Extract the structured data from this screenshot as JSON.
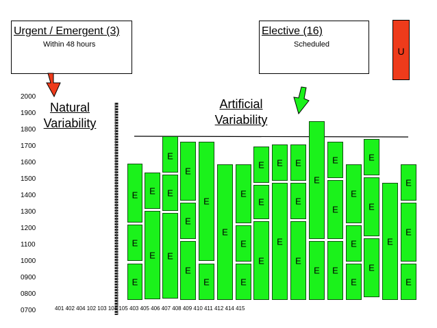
{
  "urgent_box": {
    "title": "Urgent / Emergent (3)",
    "subtitle": "Within 48 hours"
  },
  "elective_box": {
    "title": "Elective (16)",
    "subtitle": "Scheduled"
  },
  "u_label": "U",
  "headings": {
    "natural": [
      "Natural",
      "Variability"
    ],
    "artificial": [
      "Artificial",
      "Variability"
    ]
  },
  "y_axis_labels": [
    "2000",
    "1900",
    "1800",
    "1700",
    "1600",
    "1500",
    "1400",
    "1300",
    "1200",
    "1100",
    "1000",
    "0900",
    "0800",
    "0700"
  ],
  "x_axis_labels": "401 402 404   102 103 104 105 403 405 406 407 408 409 410 411 412 414 415",
  "block_label": "E",
  "colors": {
    "urgent_arrow": "#ee3b1b",
    "elective_arrow": "#1bf21b",
    "block": "#1bf21b",
    "u_box": "#ee3b1b"
  }
}
